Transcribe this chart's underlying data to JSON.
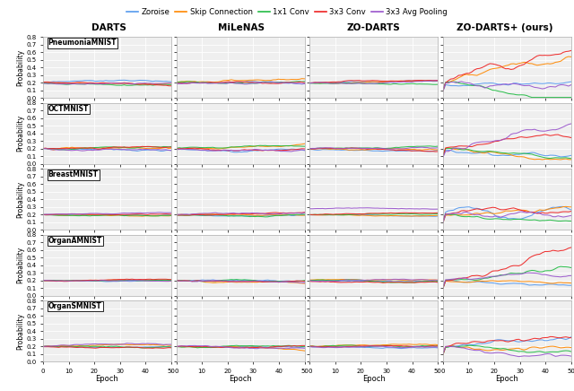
{
  "col_titles": [
    "DARTS",
    "MiLeNAS",
    "ZO-DARTS",
    "ZO-DARTS+ (ours)"
  ],
  "row_labels": [
    "PneumoniaMNIST",
    "OCTMNIST",
    "BreastMNIST",
    "OrganAMNIST",
    "OrganSMNIST"
  ],
  "legend_entries": [
    "Zoroise",
    "Skip Connection",
    "1x1 Conv",
    "3x3 Conv",
    "3x3 Avg Pooling"
  ],
  "colors": [
    "#5599ee",
    "#ff8800",
    "#22bb44",
    "#ee2222",
    "#9955cc"
  ],
  "xlabel": "Epoch",
  "ylabel": "Probability",
  "xlim": [
    0,
    50
  ],
  "ylim": [
    0.0,
    0.8
  ],
  "yticks": [
    0.0,
    0.1,
    0.2,
    0.3,
    0.4,
    0.5,
    0.6,
    0.7,
    0.8
  ],
  "xticks": [
    0,
    10,
    20,
    30,
    40,
    50
  ],
  "n_epochs": 50,
  "n_lines": 5
}
